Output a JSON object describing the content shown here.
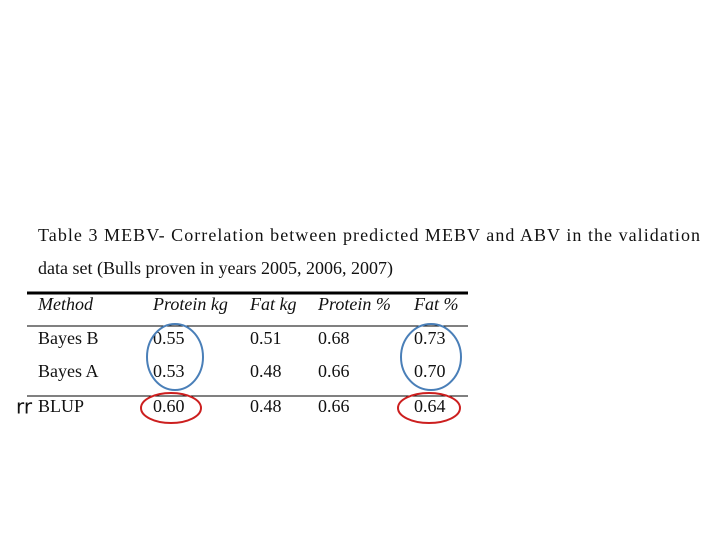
{
  "caption": {
    "lines": [
      "Table 3 MEBV- Correlation between predicted MEBV and ABV in the validation",
      "data set (Bulls proven in years 2005, 2006, 2007)"
    ]
  },
  "table": {
    "headers": [
      "Method",
      "Protein kg",
      "Fat kg",
      "Protein %",
      "Fat %"
    ],
    "rows": [
      [
        "Bayes  B",
        "0.55",
        "0.51",
        "0.68",
        "0.73"
      ],
      [
        "Bayes A",
        "0.53",
        "0.48",
        "0.66",
        "0.70"
      ],
      [
        "BLUP",
        "0.60",
        "0.48",
        "0.66",
        "0.64"
      ]
    ]
  },
  "stray_text": "rr"
}
